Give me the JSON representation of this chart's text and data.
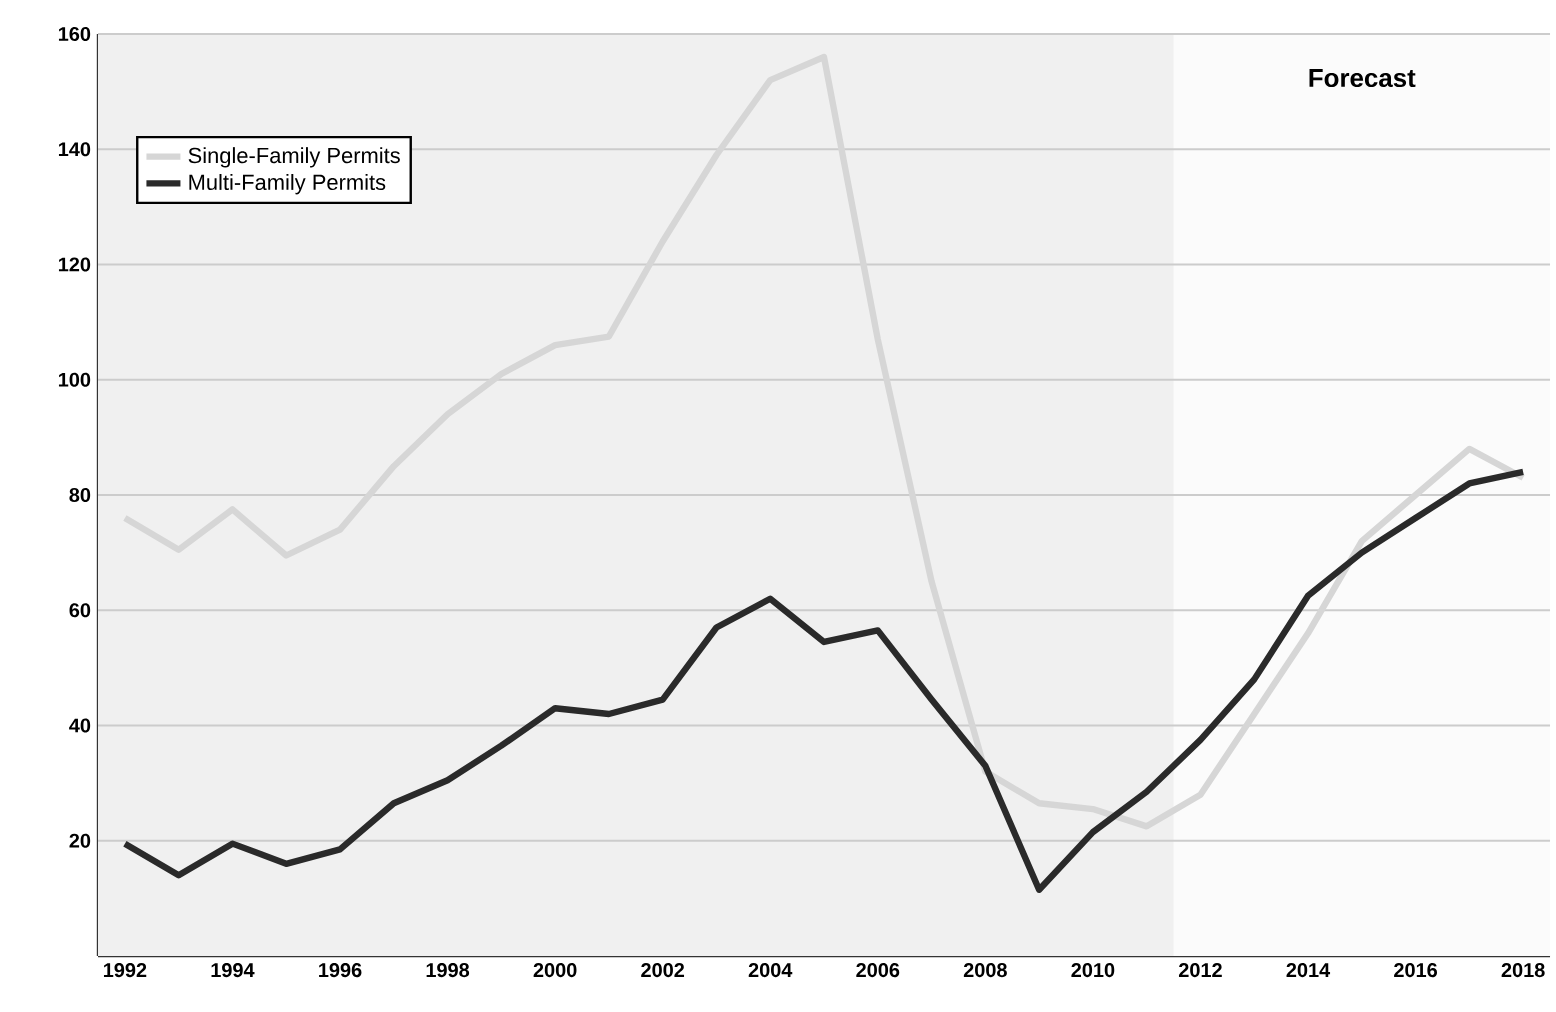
{
  "chart_data": {
    "type": "line",
    "x": [
      1992,
      1993,
      1994,
      1995,
      1996,
      1997,
      1998,
      1999,
      2000,
      2001,
      2002,
      2003,
      2004,
      2005,
      2006,
      2007,
      2008,
      2009,
      2010,
      2011,
      2012,
      2013,
      2014,
      2015,
      2016,
      2017,
      2018
    ],
    "series": [
      {
        "name": "Single-Family Permits",
        "color": "#d6d6d6",
        "values": [
          76,
          70.5,
          77.5,
          69.5,
          74,
          85,
          94,
          101,
          106,
          107.5,
          124,
          139,
          152,
          156,
          107,
          65,
          32,
          26.5,
          25.5,
          22.5,
          28,
          42,
          56,
          72,
          80,
          88,
          83
        ]
      },
      {
        "name": "Multi-Family Permits",
        "color": "#2a2a2a",
        "values": [
          19.5,
          14,
          19.5,
          16,
          18.5,
          26.5,
          30.5,
          36.5,
          43,
          42,
          44.5,
          57,
          62,
          54.5,
          56.5,
          44.5,
          33,
          11.5,
          21.5,
          28.5,
          37.5,
          48,
          62.5,
          70,
          76,
          82,
          84
        ]
      }
    ],
    "xlim": [
      1991.5,
      2018.5
    ],
    "xticks": [
      1992,
      1994,
      1996,
      1998,
      2000,
      2002,
      2004,
      2006,
      2008,
      2010,
      2012,
      2014,
      2016,
      2018
    ],
    "ylim": [
      0,
      160
    ],
    "yticks": [
      20,
      40,
      60,
      80,
      100,
      120,
      140,
      160
    ],
    "bands": [
      {
        "axis": "x",
        "from": 2011.5,
        "to": 2018.5,
        "label": "Forecast",
        "color": "#fbfbfb"
      }
    ],
    "grid": "y",
    "legend": "top left",
    "marker": "none",
    "line_style": "solid"
  }
}
